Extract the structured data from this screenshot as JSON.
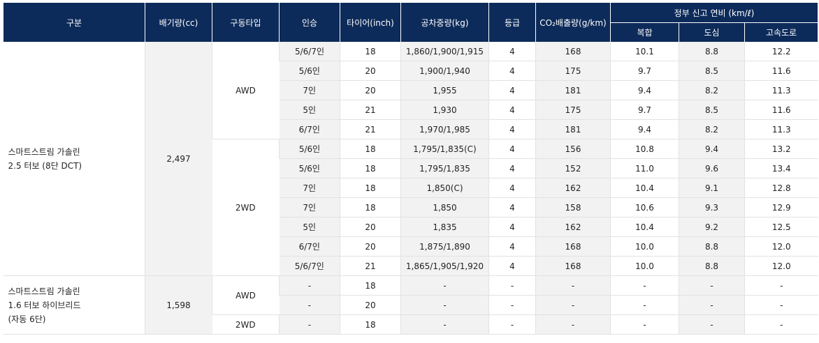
{
  "header": {
    "category": "구분",
    "displacement": "배기량(cc)",
    "drive": "구동타입",
    "seats": "인승",
    "tire": "타이어(inch)",
    "weight": "공차중량(kg)",
    "grade": "등급",
    "co2": "CO₂배출량(g/km)",
    "fuel_group": "정부 신고 연비 (km/ℓ)",
    "combined": "복합",
    "city": "도심",
    "highway": "고속도로"
  },
  "groups": [
    {
      "name_line1": "스마트스트림 가솔린",
      "name_line2": "2.5 터보 (8단 DCT)",
      "displacement": "2,497",
      "drives": [
        {
          "label": "AWD",
          "rows": [
            {
              "seats": "5/6/7인",
              "tire": "18",
              "weight": "1,860/1,900/1,915",
              "grade": "4",
              "co2": "168",
              "combined": "10.1",
              "city": "8.8",
              "highway": "12.2"
            },
            {
              "seats": "5/6인",
              "tire": "20",
              "weight": "1,900/1,940",
              "grade": "4",
              "co2": "175",
              "combined": "9.7",
              "city": "8.5",
              "highway": "11.6"
            },
            {
              "seats": "7인",
              "tire": "20",
              "weight": "1,955",
              "grade": "4",
              "co2": "181",
              "combined": "9.4",
              "city": "8.2",
              "highway": "11.3"
            },
            {
              "seats": "5인",
              "tire": "21",
              "weight": "1,930",
              "grade": "4",
              "co2": "175",
              "combined": "9.7",
              "city": "8.5",
              "highway": "11.6"
            },
            {
              "seats": "6/7인",
              "tire": "21",
              "weight": "1,970/1,985",
              "grade": "4",
              "co2": "181",
              "combined": "9.4",
              "city": "8.2",
              "highway": "11.3"
            }
          ]
        },
        {
          "label": "2WD",
          "rows": [
            {
              "seats": "5/6인",
              "tire": "18",
              "weight": "1,795/1,835(C)",
              "grade": "4",
              "co2": "156",
              "combined": "10.8",
              "city": "9.4",
              "highway": "13.2"
            },
            {
              "seats": "5/6인",
              "tire": "18",
              "weight": "1,795/1,835",
              "grade": "4",
              "co2": "152",
              "combined": "11.0",
              "city": "9.6",
              "highway": "13.4"
            },
            {
              "seats": "7인",
              "tire": "18",
              "weight": "1,850(C)",
              "grade": "4",
              "co2": "162",
              "combined": "10.4",
              "city": "9.1",
              "highway": "12.8"
            },
            {
              "seats": "7인",
              "tire": "18",
              "weight": "1,850",
              "grade": "4",
              "co2": "158",
              "combined": "10.6",
              "city": "9.3",
              "highway": "12.9"
            },
            {
              "seats": "5인",
              "tire": "20",
              "weight": "1,835",
              "grade": "4",
              "co2": "162",
              "combined": "10.4",
              "city": "9.2",
              "highway": "12.5"
            },
            {
              "seats": "6/7인",
              "tire": "20",
              "weight": "1,875/1,890",
              "grade": "4",
              "co2": "168",
              "combined": "10.0",
              "city": "8.8",
              "highway": "12.0"
            },
            {
              "seats": "5/6/7인",
              "tire": "21",
              "weight": "1,865/1,905/1,920",
              "grade": "4",
              "co2": "168",
              "combined": "10.0",
              "city": "8.8",
              "highway": "12.0"
            }
          ]
        }
      ]
    },
    {
      "name_line1": "스마트스트림 가솔린",
      "name_line2": "1.6 터보 하이브리드",
      "name_line3": "(자동 6단)",
      "displacement": "1,598",
      "drives": [
        {
          "label": "AWD",
          "rows": [
            {
              "seats": "-",
              "tire": "18",
              "weight": "-",
              "grade": "-",
              "co2": "-",
              "combined": "-",
              "city": "-",
              "highway": "-"
            },
            {
              "seats": "-",
              "tire": "20",
              "weight": "-",
              "grade": "-",
              "co2": "-",
              "combined": "-",
              "city": "-",
              "highway": "-"
            }
          ]
        },
        {
          "label": "2WD",
          "rows": [
            {
              "seats": "-",
              "tire": "18",
              "weight": "-",
              "grade": "-",
              "co2": "-",
              "combined": "-",
              "city": "-",
              "highway": "-"
            }
          ]
        }
      ]
    }
  ]
}
